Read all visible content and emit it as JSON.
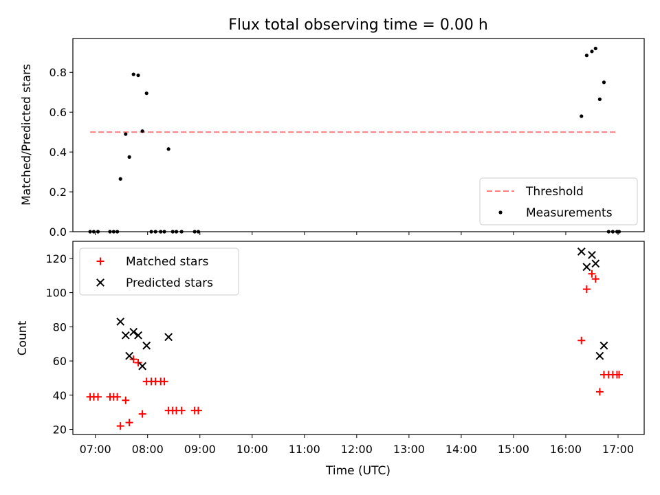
{
  "chart_data": [
    {
      "type": "scatter",
      "title": "Flux total observing time = 0.00 h",
      "xlabel": "",
      "ylabel": "Matched/Predicted stars",
      "xlim": [
        6.57,
        17.5
      ],
      "ylim": [
        0,
        0.97
      ],
      "yticks": [
        0.0,
        0.2,
        0.4,
        0.6,
        0.8
      ],
      "ytick_labels": [
        "0.0",
        "0.2",
        "0.4",
        "0.6",
        "0.8"
      ],
      "legend_position": "lower-right",
      "threshold": {
        "name": "Threshold",
        "value": 0.5,
        "x_range": [
          6.9,
          17.0
        ],
        "color": "#ff7f7f"
      },
      "series": [
        {
          "name": "Measurements",
          "color": "#000000",
          "marker": "dot",
          "points": [
            [
              6.9,
              0
            ],
            [
              6.97,
              0
            ],
            [
              7.05,
              0
            ],
            [
              7.28,
              0
            ],
            [
              7.35,
              0
            ],
            [
              7.42,
              0
            ],
            [
              7.48,
              0.265
            ],
            [
              7.58,
              0.49
            ],
            [
              7.65,
              0.375
            ],
            [
              7.73,
              0.79
            ],
            [
              7.82,
              0.785
            ],
            [
              7.9,
              0.505
            ],
            [
              7.98,
              0.695
            ],
            [
              8.07,
              0
            ],
            [
              8.15,
              0
            ],
            [
              8.25,
              0
            ],
            [
              8.32,
              0
            ],
            [
              8.4,
              0.415
            ],
            [
              8.48,
              0
            ],
            [
              8.55,
              0
            ],
            [
              8.65,
              0
            ],
            [
              8.9,
              0
            ],
            [
              8.97,
              0
            ],
            [
              16.3,
              0.58
            ],
            [
              16.4,
              0.885
            ],
            [
              16.5,
              0.905
            ],
            [
              16.57,
              0.92
            ],
            [
              16.65,
              0.665
            ],
            [
              16.73,
              0.75
            ],
            [
              16.82,
              0
            ],
            [
              16.9,
              0
            ],
            [
              16.98,
              0
            ],
            [
              17.02,
              0
            ]
          ]
        }
      ]
    },
    {
      "type": "scatter",
      "title": "",
      "xlabel": "Time (UTC)",
      "ylabel": "Count",
      "xlim": [
        6.57,
        17.5
      ],
      "ylim": [
        17,
        130
      ],
      "yticks": [
        20,
        40,
        60,
        80,
        100,
        120
      ],
      "ytick_labels": [
        "20",
        "40",
        "60",
        "80",
        "100",
        "120"
      ],
      "xticks": [
        7,
        8,
        9,
        10,
        11,
        12,
        13,
        14,
        15,
        16,
        17
      ],
      "xtick_labels": [
        "07:00",
        "08:00",
        "09:00",
        "10:00",
        "11:00",
        "12:00",
        "13:00",
        "14:00",
        "15:00",
        "16:00",
        "17:00"
      ],
      "legend_position": "upper-left",
      "series": [
        {
          "name": "Matched stars",
          "color": "#ff0000",
          "marker": "plus",
          "points": [
            [
              6.9,
              39
            ],
            [
              6.97,
              39
            ],
            [
              7.05,
              39
            ],
            [
              7.28,
              39
            ],
            [
              7.35,
              39
            ],
            [
              7.42,
              39
            ],
            [
              7.48,
              22
            ],
            [
              7.58,
              37
            ],
            [
              7.65,
              24
            ],
            [
              7.73,
              61
            ],
            [
              7.82,
              59
            ],
            [
              7.9,
              29
            ],
            [
              7.98,
              48
            ],
            [
              8.07,
              48
            ],
            [
              8.15,
              48
            ],
            [
              8.25,
              48
            ],
            [
              8.32,
              48
            ],
            [
              8.4,
              31
            ],
            [
              8.48,
              31
            ],
            [
              8.55,
              31
            ],
            [
              8.65,
              31
            ],
            [
              8.9,
              31
            ],
            [
              8.97,
              31
            ],
            [
              16.3,
              72
            ],
            [
              16.4,
              102
            ],
            [
              16.5,
              111
            ],
            [
              16.57,
              108
            ],
            [
              16.65,
              42
            ],
            [
              16.73,
              52
            ],
            [
              16.82,
              52
            ],
            [
              16.9,
              52
            ],
            [
              16.98,
              52
            ],
            [
              17.02,
              52
            ]
          ]
        },
        {
          "name": "Predicted stars",
          "color": "#000000",
          "marker": "x",
          "points": [
            [
              7.48,
              83
            ],
            [
              7.58,
              75
            ],
            [
              7.65,
              63
            ],
            [
              7.73,
              77
            ],
            [
              7.82,
              75
            ],
            [
              7.9,
              57
            ],
            [
              7.98,
              69
            ],
            [
              8.4,
              74
            ],
            [
              16.3,
              124
            ],
            [
              16.4,
              115
            ],
            [
              16.5,
              122
            ],
            [
              16.57,
              117
            ],
            [
              16.65,
              63
            ],
            [
              16.73,
              69
            ]
          ]
        }
      ]
    }
  ]
}
